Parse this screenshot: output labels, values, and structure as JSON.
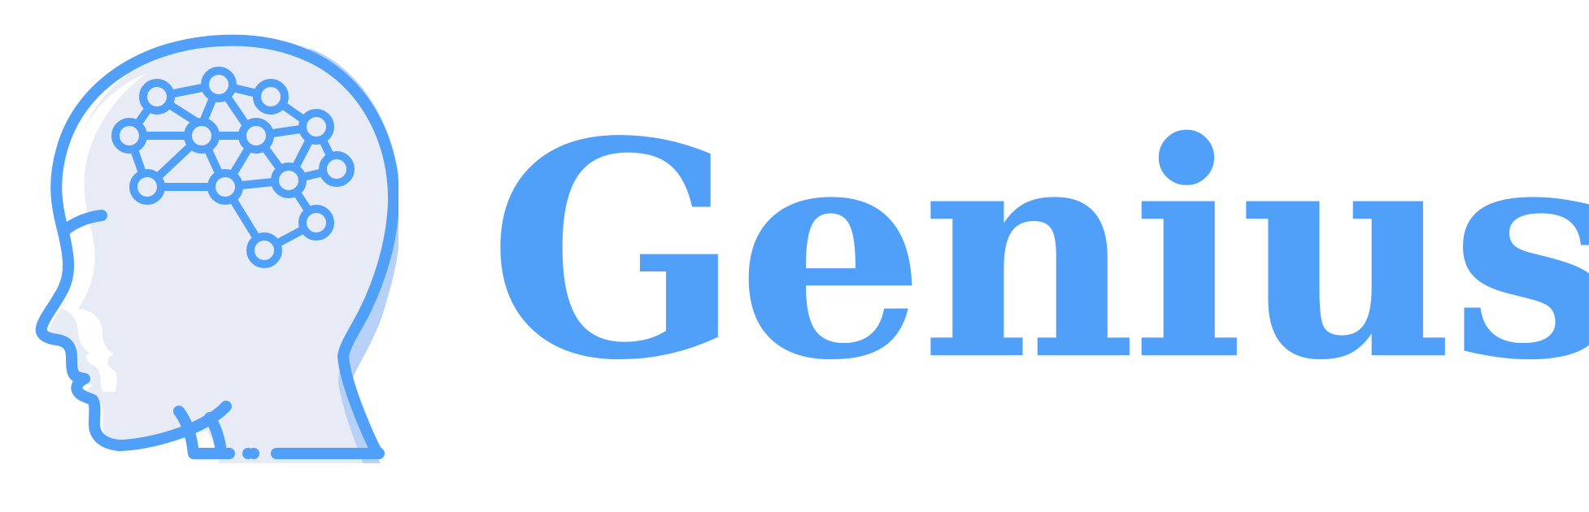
{
  "brand": {
    "name": "Genius",
    "icon": "head-neural-network-icon"
  },
  "colors": {
    "primary": "#50a0fa",
    "head_fill": "#e7ebf5",
    "head_shadow": "#b6d0f8",
    "highlight": "#ffffff"
  }
}
